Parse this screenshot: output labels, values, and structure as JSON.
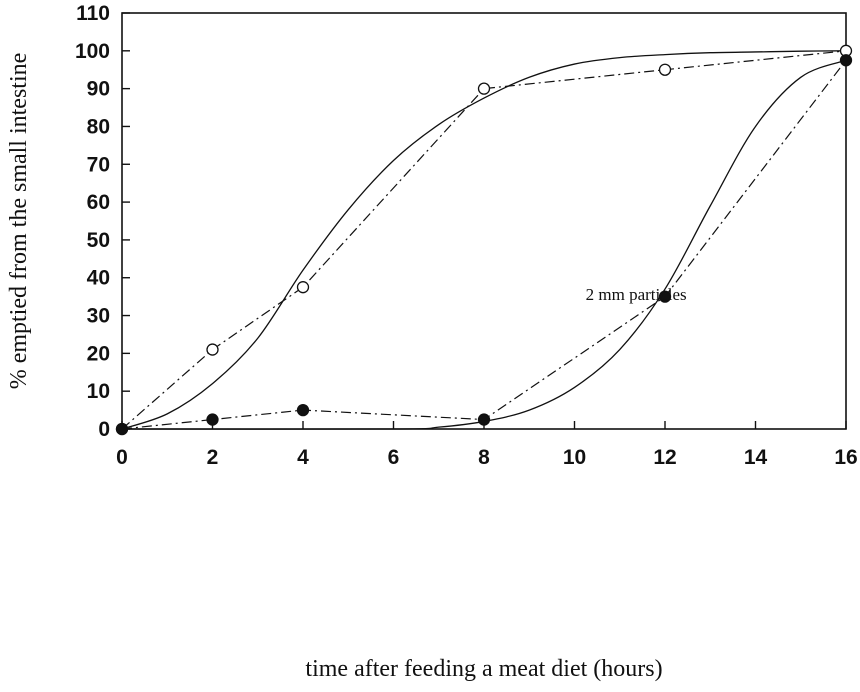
{
  "chart_data": {
    "type": "line",
    "title": "",
    "xlabel": "time after feeding a meat diet (hours)",
    "ylabel": "% emptied from the small intestine",
    "xlim": [
      0,
      16
    ],
    "ylim": [
      0,
      110
    ],
    "xticks": [
      0,
      2,
      4,
      6,
      8,
      10,
      12,
      14,
      16
    ],
    "yticks": [
      0,
      10,
      20,
      30,
      40,
      50,
      60,
      70,
      80,
      90,
      100,
      110
    ],
    "grid": false,
    "annotations": [
      {
        "text": "2 mm particles",
        "x": 12.7,
        "y": 32
      }
    ],
    "series": [
      {
        "marker": "open-circle",
        "line": "dash-dot",
        "x": [
          0,
          2,
          4,
          8,
          12,
          16
        ],
        "y": [
          0,
          21,
          37.5,
          90,
          95,
          100
        ]
      },
      {
        "marker": "filled-circle",
        "line": "dash-dot",
        "x": [
          0,
          2,
          4,
          8,
          12,
          16
        ],
        "y": [
          0,
          2.5,
          5,
          2.5,
          35,
          97.5
        ]
      }
    ],
    "fitted_curves": [
      {
        "line": "solid",
        "x": [
          0,
          1,
          2,
          3,
          4,
          5,
          6,
          7,
          8,
          9,
          10,
          11,
          12,
          13,
          14,
          15,
          16
        ],
        "y": [
          0,
          4,
          12,
          24,
          42,
          58,
          71,
          80.5,
          87.5,
          93,
          96.5,
          98.2,
          99,
          99.5,
          99.7,
          99.9,
          100
        ]
      },
      {
        "line": "solid",
        "x": [
          0,
          6,
          7,
          8,
          9,
          10,
          11,
          12,
          13,
          14,
          15,
          16
        ],
        "y": [
          0,
          0,
          0.5,
          2,
          5,
          11,
          21,
          37,
          59,
          80,
          93,
          97.5
        ]
      }
    ],
    "colors": {
      "line": "#111111",
      "background": "#ffffff"
    }
  }
}
